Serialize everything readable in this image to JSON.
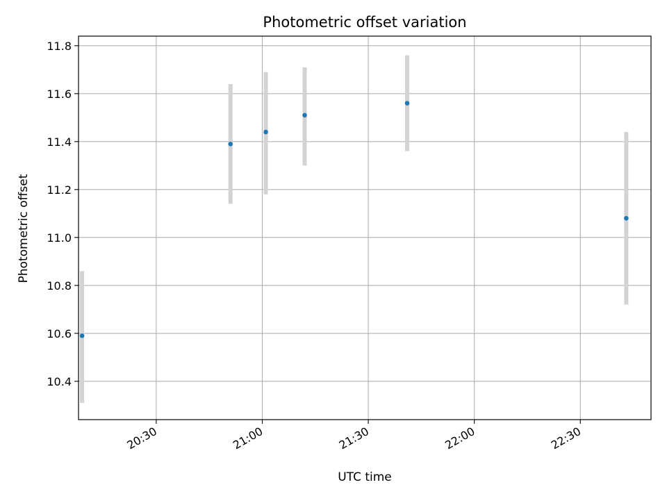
{
  "colors": {
    "marker": "#1f77b4",
    "errorbar": "#d3d3d3",
    "grid": "#b0b0b0",
    "axes": "#000000",
    "background": "#ffffff"
  },
  "chart_data": {
    "type": "scatter",
    "title": "Photometric offset variation",
    "xlabel": "UTC time",
    "ylabel": "Photometric offset",
    "x_is_time": true,
    "xlim": [
      "20:08",
      "22:50"
    ],
    "ylim": [
      10.24,
      11.84
    ],
    "grid": true,
    "legend": "none",
    "x_ticks": [
      "20:30",
      "21:00",
      "21:30",
      "22:00",
      "22:30"
    ],
    "y_ticks": [
      10.4,
      10.6,
      10.8,
      11.0,
      11.2,
      11.4,
      11.6,
      11.8
    ],
    "y_tick_labels": [
      "10.4",
      "10.6",
      "10.8",
      "11.0",
      "11.2",
      "11.4",
      "11.6",
      "11.8"
    ],
    "series": [
      {
        "x": [
          "20:09",
          "20:51",
          "21:01",
          "21:12",
          "21:41",
          "22:43"
        ],
        "y": [
          10.59,
          11.39,
          11.44,
          11.51,
          11.56,
          11.08
        ],
        "y_low": [
          10.31,
          11.14,
          11.18,
          11.3,
          11.36,
          10.72
        ],
        "y_high": [
          10.86,
          11.64,
          11.69,
          11.71,
          11.76,
          11.44
        ]
      }
    ]
  }
}
